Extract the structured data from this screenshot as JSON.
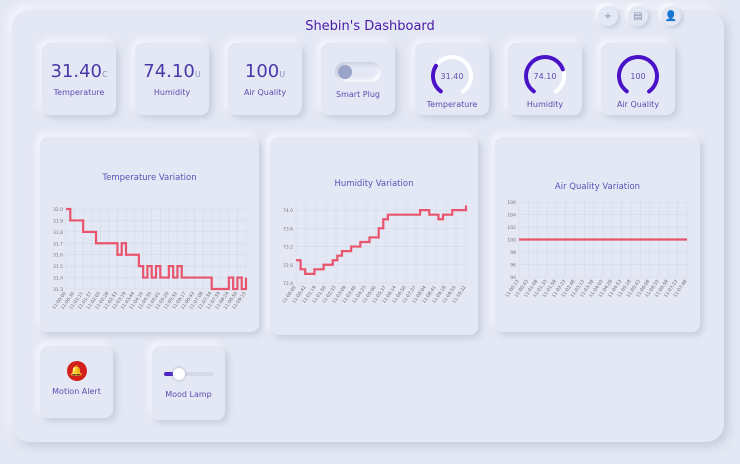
{
  "header": {
    "title": "Shebin's Dashboard",
    "icons": [
      "plus-icon",
      "note-icon",
      "user-icon"
    ],
    "icon_glyphs": [
      "+",
      "▤",
      "👤"
    ]
  },
  "stats": [
    {
      "value": "31.40",
      "unit": "C",
      "label": "Temperature"
    },
    {
      "value": "74.10",
      "unit": "U",
      "label": "Humidity"
    },
    {
      "value": "100",
      "unit": "U",
      "label": "Air Quality"
    }
  ],
  "smart_plug": {
    "label": "Smart Plug",
    "on": false
  },
  "gauges": [
    {
      "value": "31.40",
      "label": "Temperature",
      "fraction": 0.3
    },
    {
      "value": "74.10",
      "label": "Humidity",
      "fraction": 0.74
    },
    {
      "value": "100",
      "label": "Air Quality",
      "fraction": 1.0
    }
  ],
  "colors": {
    "accent": "#4a12c8",
    "line": "#e8546c",
    "alert": "#d4201a"
  },
  "motion_alert": {
    "label": "Motion Alert"
  },
  "mood_lamp": {
    "label": "Mood Lamp",
    "level": 0.3
  },
  "chart_data": [
    {
      "type": "line",
      "title": "Temperature Variation",
      "ylim": [
        31.3,
        32.0
      ],
      "yticks": [
        "32.0",
        "31.9",
        "31.8",
        "31.7",
        "31.6",
        "31.5",
        "31.4",
        "31.3"
      ],
      "xlabels": [
        "11:00:00",
        "11:00:30",
        "11:01:11",
        "11:01:37",
        "11:02:03",
        "11:02:28",
        "11:02:53",
        "11:03:19",
        "11:03:44",
        "11:04:10",
        "11:04:35",
        "11:05:01",
        "11:05:26",
        "11:05:52",
        "11:06:17",
        "11:06:43",
        "11:07:08",
        "11:07:34",
        "11:07:59",
        "11:08:24",
        "11:08:50",
        "11:09:15"
      ],
      "values": [
        32.0,
        31.9,
        31.9,
        31.9,
        31.8,
        31.8,
        31.8,
        31.7,
        31.7,
        31.7,
        31.7,
        31.7,
        31.6,
        31.7,
        31.6,
        31.6,
        31.6,
        31.5,
        31.4,
        31.5,
        31.4,
        31.5,
        31.4,
        31.4,
        31.5,
        31.4,
        31.5,
        31.4,
        31.4,
        31.4,
        31.4,
        31.4,
        31.4,
        31.4,
        31.3,
        31.3,
        31.3,
        31.3,
        31.4,
        31.3,
        31.4,
        31.3,
        31.4
      ]
    },
    {
      "type": "line",
      "title": "Humidity Variation",
      "ylim": [
        72.4,
        74.2
      ],
      "yticks": [
        "74.0",
        "73.6",
        "73.2",
        "72.8",
        "72.4"
      ],
      "xlabels": [
        "11:00:05",
        "11:00:42",
        "11:01:19",
        "11:01:56",
        "11:02:33",
        "11:03:09",
        "11:03:46",
        "11:04:23",
        "11:05:00",
        "11:05:37",
        "11:06:14",
        "11:06:50",
        "11:07:27",
        "11:08:04",
        "11:08:41",
        "11:09:18",
        "11:09:55",
        "11:10:32"
      ],
      "values": [
        72.9,
        72.7,
        72.6,
        72.6,
        72.7,
        72.7,
        72.8,
        72.8,
        72.9,
        73.0,
        73.1,
        73.1,
        73.2,
        73.2,
        73.3,
        73.3,
        73.4,
        73.4,
        73.6,
        73.8,
        73.9,
        73.9,
        73.9,
        73.9,
        73.9,
        73.9,
        73.9,
        74.0,
        74.0,
        73.9,
        73.9,
        73.8,
        73.9,
        73.9,
        74.0,
        74.0,
        74.0,
        74.1
      ]
    },
    {
      "type": "line",
      "title": "Air Quality Variation",
      "ylim": [
        94,
        106
      ],
      "yticks": [
        "106",
        "104",
        "102",
        "100",
        "98",
        "96",
        "94"
      ],
      "xlabels": [
        "11:00:13",
        "11:00:43",
        "11:01:08",
        "11:01:33",
        "11:01:58",
        "11:02:23",
        "11:02:48",
        "11:03:13",
        "11:03:38",
        "11:04:03",
        "11:04:28",
        "11:04:53",
        "11:05:18",
        "11:05:43",
        "11:06:08",
        "11:06:33",
        "11:06:58",
        "11:07:23",
        "11:07:48"
      ],
      "values": [
        100,
        100,
        100,
        100,
        100,
        100,
        100,
        100,
        100,
        100,
        100,
        100,
        100,
        100,
        100,
        100,
        100,
        100,
        100,
        100
      ]
    }
  ]
}
